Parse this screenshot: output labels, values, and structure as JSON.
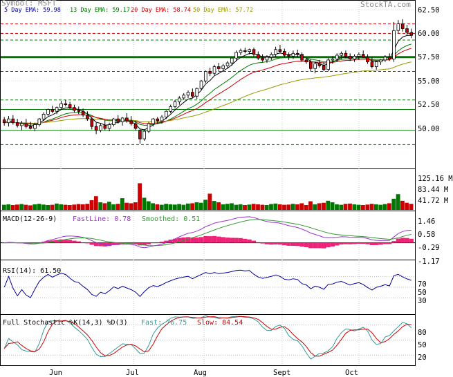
{
  "header": {
    "symbol_label": "Symbol: MSFT",
    "brand": "StockTA.com",
    "ema5": "5 Day EMA: 59.98",
    "ema13": "13 Day EMA: 59.17",
    "ema20": "20 Day EMA: 58.74",
    "ema50": "50 Day EMA: 57.72"
  },
  "colors": {
    "up": "#ffffff",
    "down": "#cc0000",
    "ema5": "#000000",
    "ema13": "#007700",
    "ema20": "#cc0000",
    "ema50": "#999900",
    "volume_up": "#007700",
    "volume_down": "#cc0000",
    "macd_hist": "#ee2277",
    "fast": "#339999",
    "slow": "#cc0000",
    "blue": "#000099",
    "ema_label_ema5": "#000099",
    "ema_label_ema13": "#007700",
    "ema_label_ema20": "#cc0000",
    "ema_label_ema50": "#999900"
  },
  "months": [
    "Jun",
    "Jul",
    "Aug",
    "Sept",
    "Oct"
  ],
  "price_axis": {
    "ticks": [
      "62.50",
      "60.00",
      "57.50",
      "55.00",
      "52.50",
      "50.00"
    ]
  },
  "volume_axis": {
    "ticks": [
      "125.16 M",
      "83.44 M",
      "41.72 M"
    ]
  },
  "macd": {
    "title": "MACD(12-26-9)",
    "fast_label": "FastLine: 0.78",
    "smooth_label": "Smoothed: 0.51",
    "ticks": [
      "1.46",
      "0.58",
      "-0.29",
      "-1.17"
    ]
  },
  "rsi": {
    "title": "RSI(14): 61.50",
    "ticks": [
      "70",
      "50",
      "30"
    ]
  },
  "stoch": {
    "title": "Full Stochastic %K(14,3) %D(3)",
    "fast_label": "Fast: 76.75",
    "slow_label": "Slow: 84.54",
    "ticks": [
      "80",
      "50",
      "20"
    ]
  },
  "chart_data": {
    "type": "candlestick",
    "title": "Symbol: MSFT",
    "symbol": "MSFT",
    "x_labels": [
      "Jun",
      "Jul",
      "Aug",
      "Sept",
      "Oct"
    ],
    "ylim": [
      48.5,
      62.8
    ],
    "price_levels": [
      {
        "value": 61.0,
        "style": "dashed-red"
      },
      {
        "value": 60.0,
        "style": "dashed-red"
      },
      {
        "value": 59.3,
        "style": "dashed-green"
      },
      {
        "value": 57.5,
        "style": "solid-green-thick"
      },
      {
        "value": 56.0,
        "style": "dashed-green"
      },
      {
        "value": 53.0,
        "style": "dashed-green"
      },
      {
        "value": 52.0,
        "style": "solid-green"
      },
      {
        "value": 49.8,
        "style": "solid-green"
      },
      {
        "value": 48.3,
        "style": "dashed-green"
      }
    ],
    "ohlc": [
      [
        50.9,
        51.2,
        50.3,
        50.6
      ],
      [
        50.6,
        51.3,
        50.2,
        51.0
      ],
      [
        51.0,
        51.4,
        50.4,
        50.6
      ],
      [
        50.6,
        51.0,
        50.1,
        50.3
      ],
      [
        50.3,
        50.8,
        49.8,
        50.5
      ],
      [
        50.5,
        51.0,
        50.0,
        50.2
      ],
      [
        50.2,
        50.7,
        49.9,
        50.0
      ],
      [
        50.0,
        50.6,
        49.7,
        50.4
      ],
      [
        50.4,
        51.1,
        50.2,
        51.0
      ],
      [
        51.0,
        51.7,
        50.8,
        51.5
      ],
      [
        51.5,
        52.1,
        51.3,
        52.0
      ],
      [
        52.0,
        52.4,
        51.6,
        51.8
      ],
      [
        51.8,
        52.3,
        51.5,
        52.2
      ],
      [
        52.2,
        52.9,
        52.0,
        52.6
      ],
      [
        52.6,
        53.0,
        52.3,
        52.5
      ],
      [
        52.5,
        52.8,
        52.0,
        52.2
      ],
      [
        52.2,
        52.5,
        51.7,
        51.9
      ],
      [
        51.9,
        52.3,
        51.5,
        51.8
      ],
      [
        51.8,
        52.1,
        51.2,
        51.4
      ],
      [
        51.4,
        51.8,
        50.8,
        51.0
      ],
      [
        51.0,
        51.2,
        49.9,
        50.2
      ],
      [
        50.2,
        50.6,
        49.4,
        49.8
      ],
      [
        49.8,
        50.5,
        49.6,
        50.3
      ],
      [
        50.3,
        50.9,
        49.8,
        50.0
      ],
      [
        50.0,
        50.6,
        49.7,
        50.4
      ],
      [
        50.4,
        51.1,
        50.2,
        51.0
      ],
      [
        51.0,
        51.4,
        50.5,
        50.7
      ],
      [
        50.7,
        51.2,
        50.3,
        51.1
      ],
      [
        51.1,
        51.6,
        50.6,
        50.8
      ],
      [
        50.8,
        51.3,
        50.3,
        50.5
      ],
      [
        50.5,
        50.8,
        49.8,
        50.0
      ],
      [
        49.8,
        49.9,
        48.4,
        48.9
      ],
      [
        48.9,
        49.9,
        48.7,
        49.7
      ],
      [
        49.7,
        50.7,
        49.5,
        50.5
      ],
      [
        50.5,
        51.1,
        50.2,
        51.0
      ],
      [
        51.0,
        51.2,
        50.5,
        50.8
      ],
      [
        50.8,
        51.4,
        50.5,
        51.2
      ],
      [
        51.2,
        51.9,
        51.0,
        51.8
      ],
      [
        51.8,
        52.5,
        51.6,
        52.3
      ],
      [
        52.3,
        53.0,
        52.1,
        52.8
      ],
      [
        52.8,
        53.4,
        52.5,
        53.2
      ],
      [
        53.2,
        53.7,
        53.0,
        53.5
      ],
      [
        53.5,
        54.0,
        53.2,
        53.8
      ],
      [
        53.8,
        54.2,
        53.2,
        53.4
      ],
      [
        53.4,
        54.3,
        53.1,
        54.2
      ],
      [
        54.2,
        55.1,
        54.0,
        55.0
      ],
      [
        55.0,
        56.1,
        54.8,
        56.0
      ],
      [
        56.0,
        56.4,
        55.5,
        55.8
      ],
      [
        55.8,
        56.7,
        55.6,
        56.5
      ],
      [
        56.5,
        56.9,
        56.0,
        56.3
      ],
      [
        56.3,
        56.8,
        56.0,
        56.6
      ],
      [
        56.6,
        57.1,
        56.3,
        56.9
      ],
      [
        56.9,
        57.5,
        56.6,
        57.4
      ],
      [
        57.4,
        58.2,
        57.1,
        58.0
      ],
      [
        58.0,
        58.4,
        57.7,
        58.2
      ],
      [
        58.2,
        58.5,
        57.9,
        58.1
      ],
      [
        58.1,
        58.4,
        57.8,
        58.3
      ],
      [
        58.3,
        58.5,
        57.6,
        57.8
      ],
      [
        57.8,
        58.1,
        57.2,
        57.4
      ],
      [
        57.4,
        57.8,
        57.0,
        57.2
      ],
      [
        57.2,
        57.7,
        56.9,
        57.5
      ],
      [
        57.5,
        58.0,
        57.2,
        57.8
      ],
      [
        57.8,
        58.6,
        57.5,
        58.3
      ],
      [
        58.3,
        58.8,
        57.9,
        58.1
      ],
      [
        58.1,
        58.4,
        57.5,
        57.7
      ],
      [
        57.7,
        58.0,
        57.2,
        57.6
      ],
      [
        57.6,
        58.2,
        57.3,
        57.9
      ],
      [
        57.9,
        58.3,
        57.5,
        57.8
      ],
      [
        57.8,
        58.0,
        57.0,
        57.2
      ],
      [
        57.2,
        57.5,
        56.8,
        57.0
      ],
      [
        57.0,
        57.3,
        56.0,
        56.3
      ],
      [
        56.3,
        57.0,
        55.8,
        56.8
      ],
      [
        56.8,
        57.2,
        56.4,
        56.6
      ],
      [
        56.6,
        57.0,
        56.0,
        56.2
      ],
      [
        56.2,
        57.4,
        56.0,
        57.2
      ],
      [
        57.2,
        57.6,
        56.8,
        57.3
      ],
      [
        57.3,
        57.9,
        57.0,
        57.7
      ],
      [
        57.7,
        58.1,
        57.3,
        57.9
      ],
      [
        57.9,
        58.2,
        57.4,
        57.6
      ],
      [
        57.6,
        57.9,
        57.1,
        57.3
      ],
      [
        57.3,
        57.8,
        57.0,
        57.6
      ],
      [
        57.6,
        58.0,
        57.2,
        57.8
      ],
      [
        57.8,
        58.2,
        57.4,
        57.5
      ],
      [
        57.5,
        57.8,
        56.8,
        57.0
      ],
      [
        57.0,
        57.5,
        56.3,
        56.5
      ],
      [
        56.5,
        57.1,
        56.2,
        57.0
      ],
      [
        57.0,
        57.3,
        56.7,
        57.2
      ],
      [
        57.2,
        57.7,
        57.0,
        57.5
      ],
      [
        57.5,
        57.9,
        57.1,
        57.3
      ],
      [
        57.3,
        61.2,
        57.0,
        60.3
      ],
      [
        60.3,
        61.4,
        60.0,
        61.0
      ],
      [
        61.0,
        61.5,
        60.2,
        60.5
      ],
      [
        60.5,
        60.9,
        59.8,
        60.1
      ],
      [
        60.1,
        60.5,
        59.5,
        59.8
      ]
    ],
    "ema5_last": 59.98,
    "ema13_last": 59.17,
    "ema20_last": 58.74,
    "ema50_last": 57.72,
    "volume_ticks_millions": [
      125.16,
      83.44,
      41.72
    ],
    "volume_millions": [
      20,
      22,
      19,
      21,
      23,
      20,
      18,
      22,
      24,
      21,
      19,
      20,
      25,
      22,
      20,
      19,
      21,
      23,
      22,
      24,
      38,
      54,
      30,
      26,
      32,
      22,
      24,
      46,
      28,
      26,
      30,
      105,
      48,
      34,
      26,
      22,
      20,
      24,
      22,
      21,
      23,
      20,
      25,
      26,
      30,
      28,
      40,
      64,
      35,
      30,
      22,
      24,
      26,
      20,
      22,
      19,
      21,
      24,
      22,
      20,
      19,
      23,
      25,
      22,
      20,
      21,
      24,
      22,
      26,
      19,
      34,
      22,
      26,
      28,
      36,
      30,
      22,
      20,
      24,
      25,
      22,
      20,
      19,
      21,
      24,
      22,
      20,
      23,
      26,
      44,
      62,
      36,
      28,
      24
    ],
    "macd": {
      "fast": 0.78,
      "smoothed": 0.51,
      "ylim": [
        -1.17,
        1.46
      ]
    },
    "rsi": {
      "last": 61.5,
      "ylim": [
        0,
        100
      ],
      "levels": [
        70,
        50,
        30
      ]
    },
    "stochastic": {
      "fast": 76.75,
      "slow": 84.54,
      "ylim": [
        0,
        100
      ],
      "levels": [
        80,
        50,
        20
      ]
    }
  }
}
